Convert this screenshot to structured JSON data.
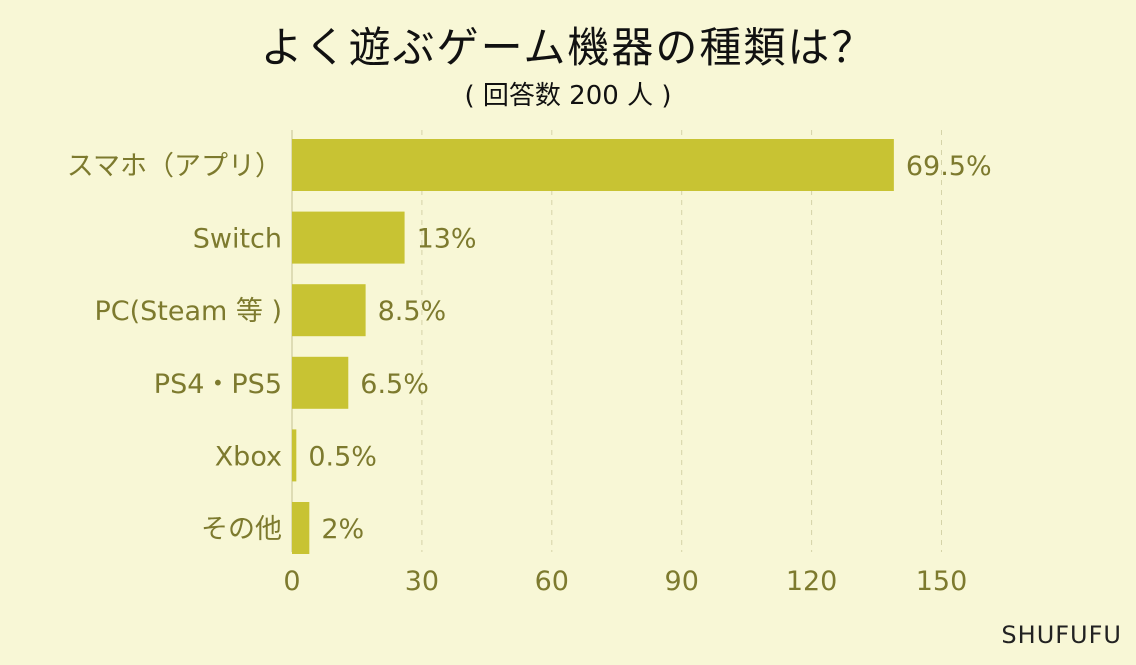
{
  "header": {
    "title": "よく遊ぶゲーム機器の種類は？",
    "subtitle": "( 回答数 200 人 )"
  },
  "credit": "SHUFUFU",
  "colors": {
    "background": "#f8f7d6",
    "bar": "#c8c333",
    "text": "#7d7a2e",
    "gridline": "#d5d3a8"
  },
  "chart_data": {
    "type": "bar",
    "orientation": "horizontal",
    "title": "よく遊ぶゲーム機器の種類は？",
    "subtitle": "( 回答数 200 人 )",
    "categories": [
      "スマホ（アプリ）",
      "Switch",
      "PC(Steam 等 )",
      "PS4・PS5",
      "Xbox",
      "その他"
    ],
    "values": [
      139,
      26,
      17,
      13,
      1,
      4
    ],
    "data_labels": [
      "69.5%",
      "13%",
      "8.5%",
      "6.5%",
      "0.5%",
      "2%"
    ],
    "xlim": [
      0,
      150
    ],
    "xticks": [
      0,
      30,
      60,
      90,
      120,
      150
    ],
    "grid": true,
    "legend": "none"
  }
}
